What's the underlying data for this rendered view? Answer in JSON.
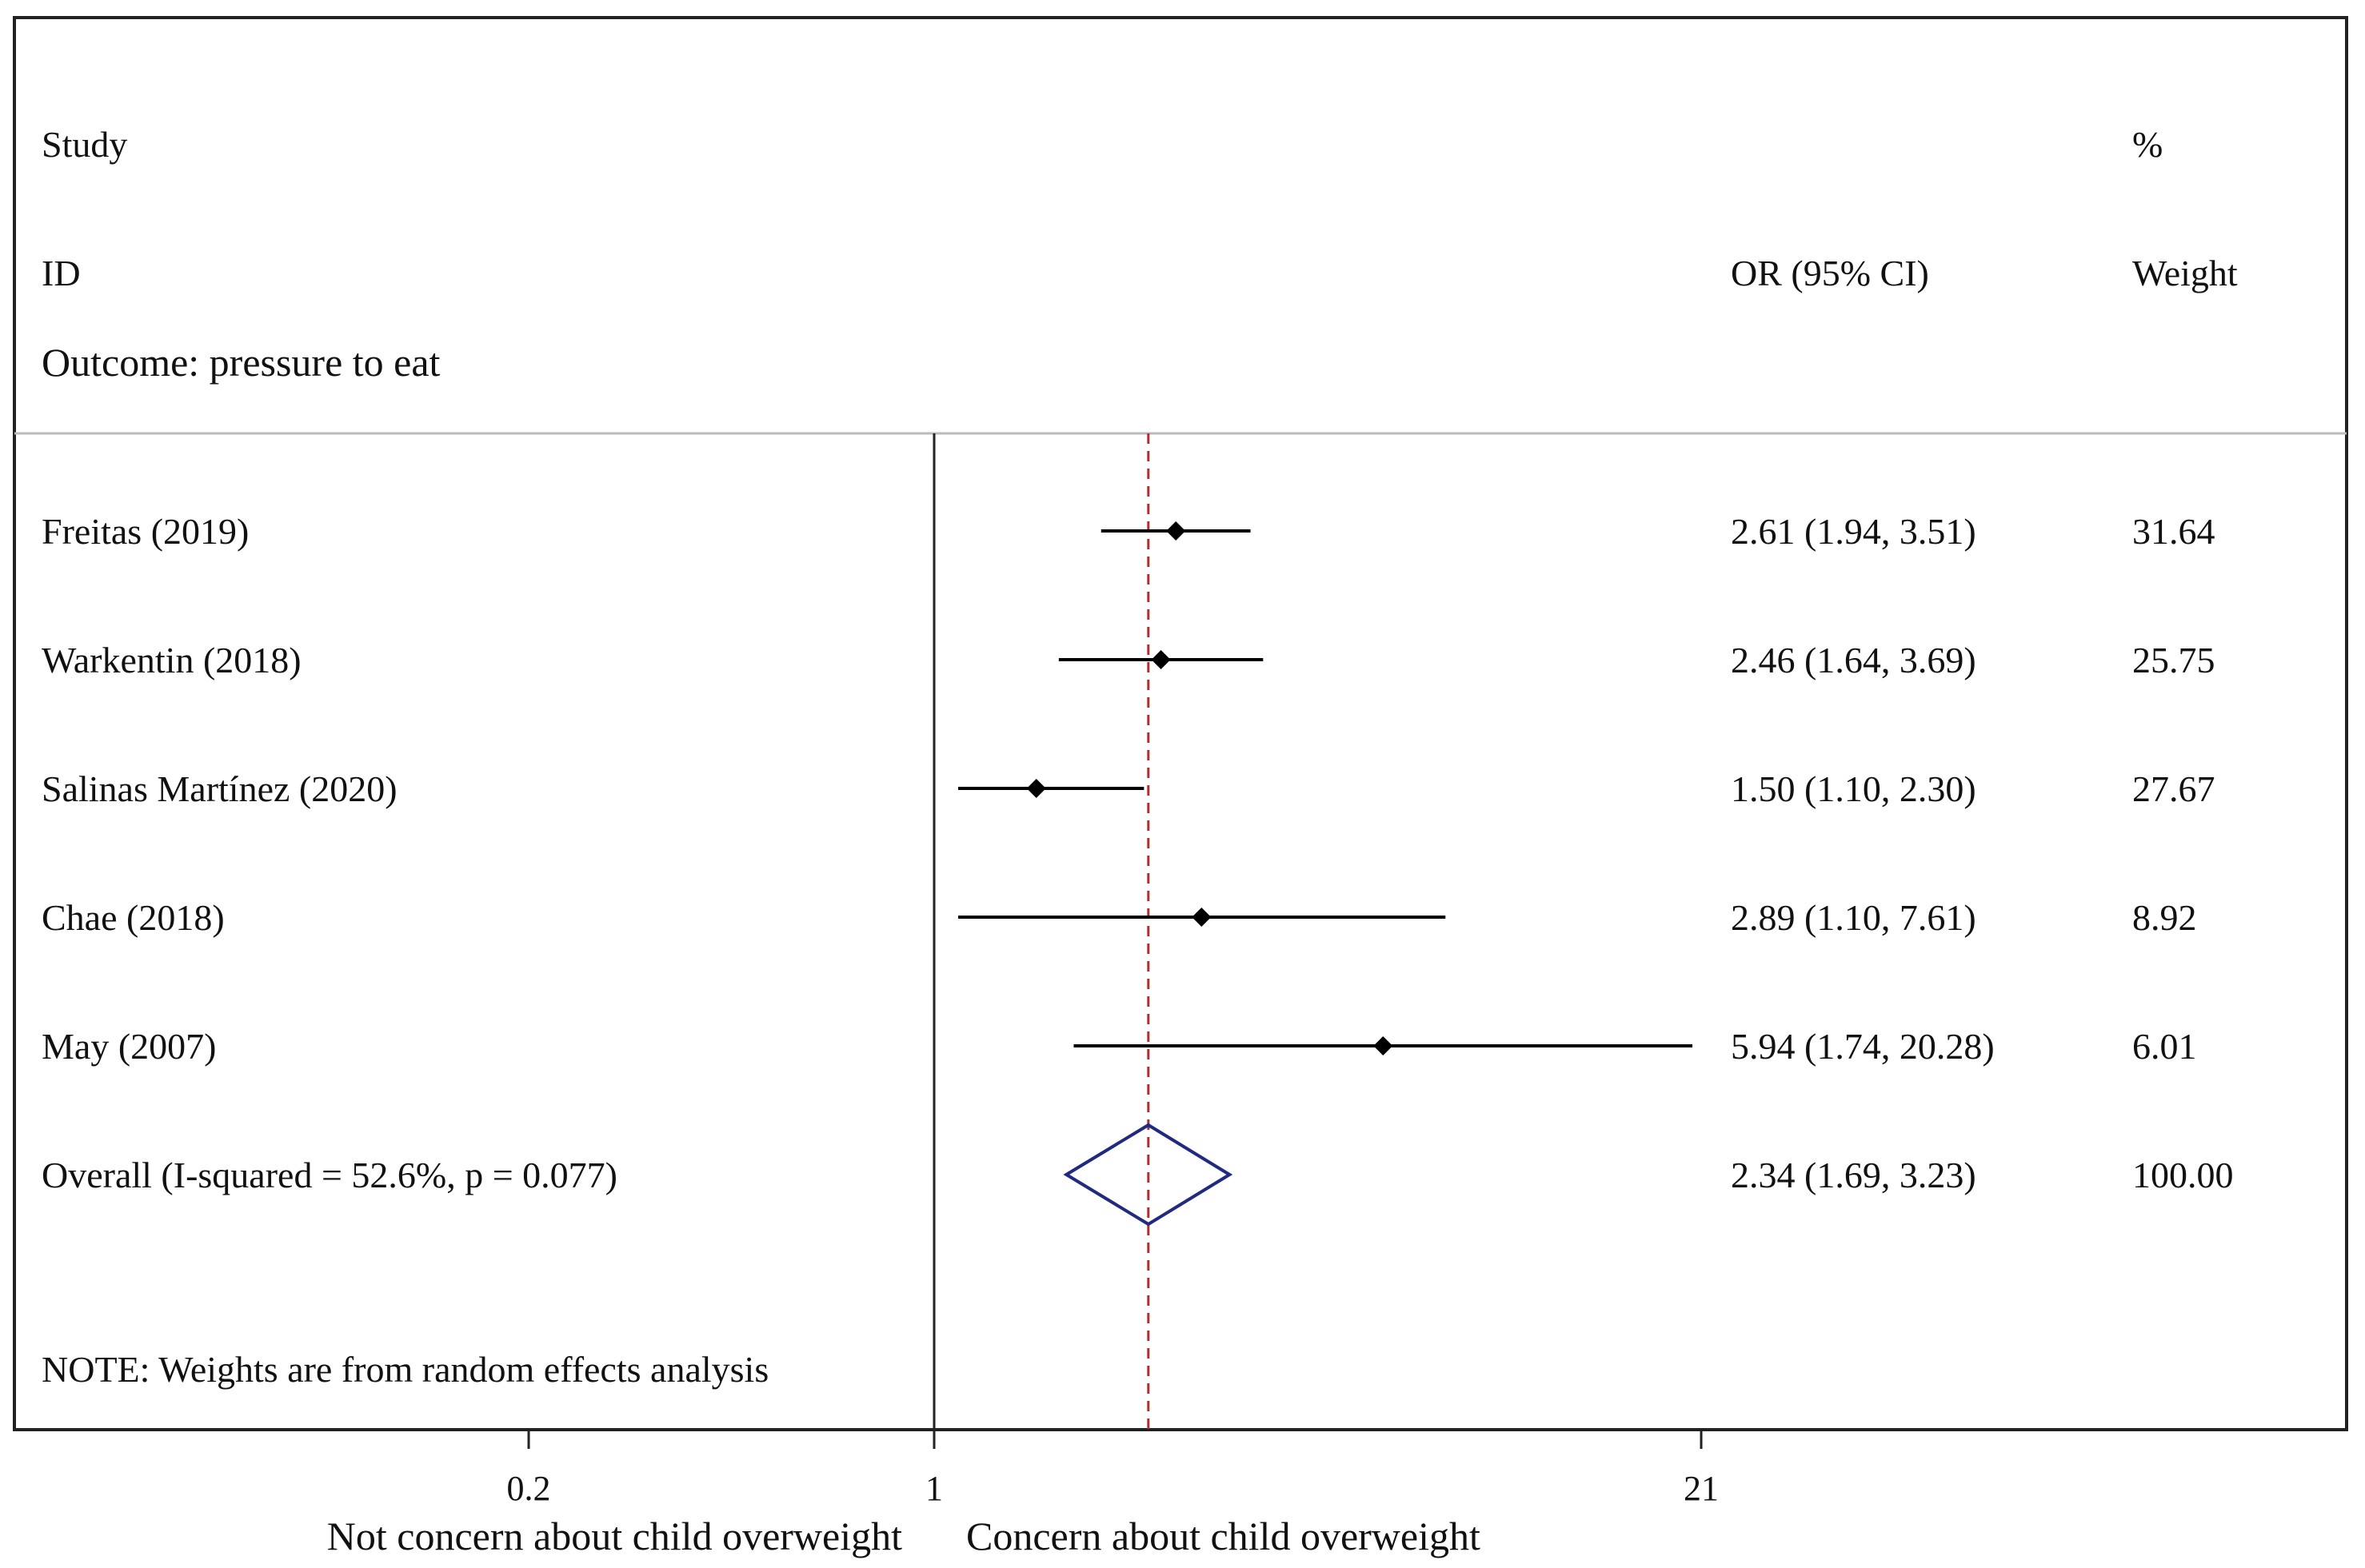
{
  "chart_data": {
    "type": "forest",
    "scale": "log",
    "header": {
      "study_line1": "Study",
      "study_line2": "ID",
      "or_label": "OR (95% CI)",
      "weight_line1": "%",
      "weight_line2": "Weight"
    },
    "subtitle": "Outcome: pressure to eat",
    "studies": [
      {
        "label": "Freitas (2019)",
        "or": 2.61,
        "lo": 1.94,
        "hi": 3.51,
        "text": "2.61 (1.94, 3.51)",
        "weight": "31.64"
      },
      {
        "label": "Warkentin (2018)",
        "or": 2.46,
        "lo": 1.64,
        "hi": 3.69,
        "text": "2.46 (1.64, 3.69)",
        "weight": "25.75"
      },
      {
        "label": "Salinas Martínez (2020)",
        "or": 1.5,
        "lo": 1.1,
        "hi": 2.3,
        "text": "1.50 (1.10, 2.30)",
        "weight": "27.67"
      },
      {
        "label": "Chae (2018)",
        "or": 2.89,
        "lo": 1.1,
        "hi": 7.61,
        "text": "2.89 (1.10, 7.61)",
        "weight": "8.92"
      },
      {
        "label": "May (2007)",
        "or": 5.94,
        "lo": 1.74,
        "hi": 20.28,
        "text": "5.94 (1.74, 20.28)",
        "weight": "6.01"
      }
    ],
    "overall": {
      "label": "Overall  (I-squared = 52.6%, p = 0.077)",
      "or": 2.34,
      "lo": 1.69,
      "hi": 3.23,
      "text": "2.34 (1.69, 3.23)",
      "weight": "100.00"
    },
    "note": "NOTE: Weights are from random effects analysis",
    "x_ticks": [
      {
        "value": 0.2,
        "label": "0.2"
      },
      {
        "value": 1,
        "label": "1"
      },
      {
        "value": 21,
        "label": "21"
      }
    ],
    "xlim": [
      0.05,
      24
    ],
    "axis_label_left": "Not concern about child overweight",
    "axis_label_right": "Concern about child overweight",
    "colors": {
      "diamond": "#1f2a80",
      "ref_line": "#b03030",
      "marker": "#000000"
    }
  }
}
